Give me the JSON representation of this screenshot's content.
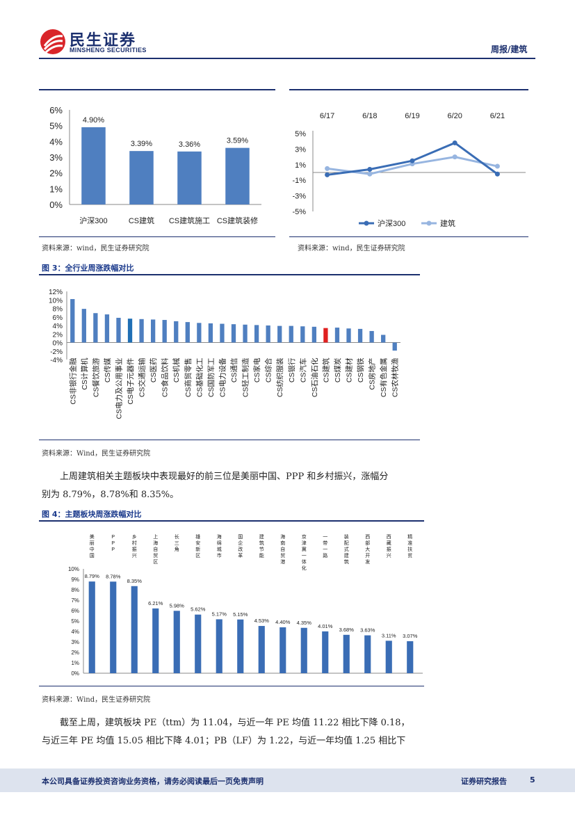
{
  "header": {
    "brand_cn": "民生证券",
    "brand_en": "MINSHENG SECURITIES",
    "section": "周报/建筑"
  },
  "figure_top_left": {
    "source": "资料来源：wind，民生证券研究院",
    "chart_data": {
      "type": "bar",
      "categories": [
        "沪深300",
        "CS建筑",
        "CS建筑施工",
        "CS建筑装修"
      ],
      "values": [
        4.9,
        3.39,
        3.36,
        3.59
      ],
      "value_labels": [
        "4.90%",
        "3.39%",
        "3.36%",
        "3.59%"
      ],
      "ylim": [
        0,
        6
      ],
      "yticks": [
        "0%",
        "1%",
        "2%",
        "3%",
        "4%",
        "5%",
        "6%"
      ],
      "color": "#4f7fc0"
    }
  },
  "figure_top_right": {
    "source": "资料来源：wind，民生证券研究院",
    "chart_data": {
      "type": "line",
      "x": [
        "6/17",
        "6/18",
        "6/19",
        "6/20",
        "6/21"
      ],
      "ylim": [
        -5,
        5
      ],
      "yticks": [
        "5%",
        "3%",
        "1%",
        "-1%",
        "-3%",
        "-5%"
      ],
      "series": [
        {
          "name": "沪深300",
          "values": [
            -0.3,
            0.4,
            1.5,
            3.8,
            -0.2
          ],
          "color": "#3a6db5"
        },
        {
          "name": "建筑",
          "values": [
            0.5,
            -0.2,
            1.1,
            2.0,
            0.8
          ],
          "color": "#97b5e0"
        }
      ]
    }
  },
  "figure3": {
    "title": "图 3：全行业周涨跌幅对比",
    "source": "资料来源：Wind，民生证券研究院",
    "chart_data": {
      "type": "bar",
      "ylim": [
        -4,
        12
      ],
      "yticks": [
        "12%",
        "10%",
        "8%",
        "6%",
        "4%",
        "2%",
        "0%",
        "-2%",
        "-4%"
      ],
      "categories": [
        "CS非银行金融",
        "CS计算机",
        "CS餐饮旅游",
        "CS传媒",
        "CS电力及公用事业",
        "CS电子元器件",
        "CS交通运输",
        "CS医药",
        "CS食品饮料",
        "CS机械",
        "CS商贸零售",
        "CS基础化工",
        "CS国防军工",
        "CS电力设备",
        "CS通信",
        "CS轻工制造",
        "CS家电",
        "CS综合",
        "CS纺织服装",
        "CS银行",
        "CS汽车",
        "CS石油石化",
        "CS建筑",
        "CS煤炭",
        "CS建材",
        "CS钢铁",
        "CS房地产",
        "CS有色金属",
        "CS农林牧渔"
      ],
      "values": [
        10.2,
        7.9,
        6.9,
        6.6,
        5.8,
        5.6,
        5.5,
        5.4,
        5.3,
        5.0,
        4.8,
        4.6,
        4.5,
        4.4,
        4.3,
        4.2,
        4.1,
        4.0,
        3.9,
        3.9,
        3.8,
        3.7,
        3.4,
        3.5,
        3.3,
        3.2,
        2.7,
        1.8,
        -1.9
      ],
      "highlight": {
        "CS电子元器件": "#1f6fb5",
        "CS建筑": "#e02020"
      },
      "color": "#4f7fc0"
    }
  },
  "paragraph1": {
    "line1": "上周建筑相关主题板块中表现最好的前三位是美丽中国、PPP 和乡村振兴，涨幅分",
    "line2": "别为 8.79%，8.78%和 8.35%。"
  },
  "figure4": {
    "title": "图 4：主题板块周涨跌幅对比",
    "source": "资料来源：Wind，民生证券研究院",
    "chart_data": {
      "type": "bar",
      "ylim": [
        0,
        10
      ],
      "yticks": [
        "10%",
        "9%",
        "8%",
        "7%",
        "6%",
        "5%",
        "4%",
        "3%",
        "2%",
        "1%",
        "0%"
      ],
      "categories": [
        "美丽中国",
        "PPP",
        "乡村振兴",
        "上海自贸区",
        "长三角",
        "雄安新区",
        "海绵城市",
        "国企改革",
        "建筑节能",
        "海南自贸港",
        "京津冀一体化",
        "一带一路",
        "装配式建筑",
        "西部大开发",
        "西藏振兴",
        "精准扶贫"
      ],
      "values": [
        8.79,
        8.78,
        8.35,
        6.21,
        5.98,
        5.62,
        5.17,
        5.15,
        4.53,
        4.4,
        4.35,
        4.01,
        3.68,
        3.63,
        3.11,
        3.07
      ],
      "value_labels": [
        "8.79%",
        "8.78%",
        "8.35%",
        "6.21%",
        "5.98%",
        "5.62%",
        "5.17%",
        "5.15%",
        "4.53%",
        "4.40%",
        "4.35%",
        "4.01%",
        "3.68%",
        "3.63%",
        "3.11%",
        "3.07%"
      ],
      "color": "#3a6db5"
    }
  },
  "paragraph2": {
    "line1": "截至上周，建筑板块 PE（ttm）为 11.04，与近一年 PE 均值 11.22 相比下降 0.18，",
    "line2": "与近三年 PE 均值 15.05 相比下降 4.01；PB（LF）为 1.22，与近一年均值 1.25 相比下"
  },
  "footer": {
    "disclaimer": "本公司具备证券投资咨询业务资格，请务必阅读最后一页免责声明",
    "report_type": "证券研究报告",
    "page": "5"
  }
}
